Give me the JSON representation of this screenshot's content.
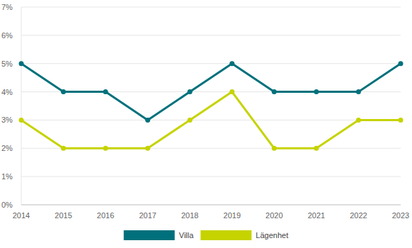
{
  "chart_data": {
    "type": "line",
    "categories": [
      "2014",
      "2015",
      "2016",
      "2017",
      "2018",
      "2019",
      "2020",
      "2021",
      "2022",
      "2023"
    ],
    "series": [
      {
        "name": "Villa",
        "color": "#00717c",
        "values": [
          5,
          4,
          4,
          3,
          4,
          5,
          4,
          4,
          4,
          5
        ]
      },
      {
        "name": "Lägenhet",
        "color": "#c6d300",
        "values": [
          3,
          2,
          2,
          2,
          3,
          4,
          2,
          2,
          3,
          3
        ]
      }
    ],
    "ylim": [
      0,
      7
    ],
    "yticks": [
      {
        "value": 0,
        "label": "0%"
      },
      {
        "value": 1,
        "label": "1%"
      },
      {
        "value": 2,
        "label": "2%"
      },
      {
        "value": 3,
        "label": "3%"
      },
      {
        "value": 4,
        "label": "4%"
      },
      {
        "value": 5,
        "label": "5%"
      },
      {
        "value": 6,
        "label": "6%"
      },
      {
        "value": 7,
        "label": "7%"
      }
    ],
    "grid": true,
    "legend": "bottom",
    "marker": "circle"
  }
}
